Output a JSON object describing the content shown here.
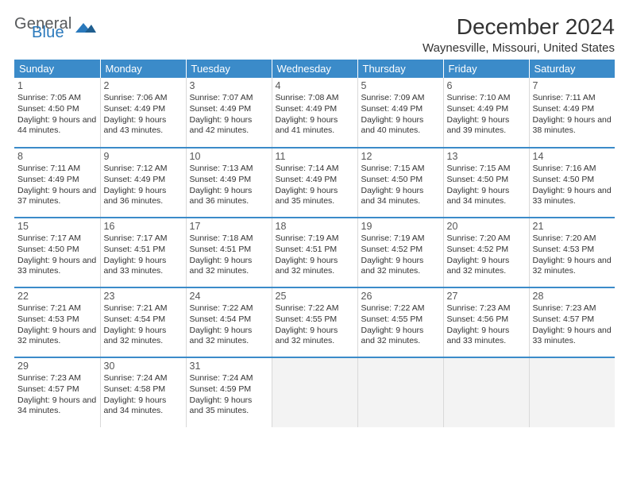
{
  "brand": {
    "part1": "General",
    "part2": "Blue"
  },
  "title": "December 2024",
  "location": "Waynesville, Missouri, United States",
  "colors": {
    "header_bg": "#3b8bc9",
    "header_fg": "#ffffff",
    "row_divider": "#3b8bc9",
    "cell_border": "#d9d9d9",
    "empty_bg": "#f3f3f3",
    "brand_gray": "#57595b",
    "brand_blue": "#2a79bc"
  },
  "typography": {
    "title_fontsize": 28,
    "location_fontsize": 15,
    "dayheader_fontsize": 13,
    "cell_fontsize": 10.5,
    "daynum_fontsize": 12.5
  },
  "days_of_week": [
    "Sunday",
    "Monday",
    "Tuesday",
    "Wednesday",
    "Thursday",
    "Friday",
    "Saturday"
  ],
  "weeks": [
    [
      {
        "n": "1",
        "sr": "7:05 AM",
        "ss": "4:50 PM",
        "dl": "9 hours and 44 minutes."
      },
      {
        "n": "2",
        "sr": "7:06 AM",
        "ss": "4:49 PM",
        "dl": "9 hours and 43 minutes."
      },
      {
        "n": "3",
        "sr": "7:07 AM",
        "ss": "4:49 PM",
        "dl": "9 hours and 42 minutes."
      },
      {
        "n": "4",
        "sr": "7:08 AM",
        "ss": "4:49 PM",
        "dl": "9 hours and 41 minutes."
      },
      {
        "n": "5",
        "sr": "7:09 AM",
        "ss": "4:49 PM",
        "dl": "9 hours and 40 minutes."
      },
      {
        "n": "6",
        "sr": "7:10 AM",
        "ss": "4:49 PM",
        "dl": "9 hours and 39 minutes."
      },
      {
        "n": "7",
        "sr": "7:11 AM",
        "ss": "4:49 PM",
        "dl": "9 hours and 38 minutes."
      }
    ],
    [
      {
        "n": "8",
        "sr": "7:11 AM",
        "ss": "4:49 PM",
        "dl": "9 hours and 37 minutes."
      },
      {
        "n": "9",
        "sr": "7:12 AM",
        "ss": "4:49 PM",
        "dl": "9 hours and 36 minutes."
      },
      {
        "n": "10",
        "sr": "7:13 AM",
        "ss": "4:49 PM",
        "dl": "9 hours and 36 minutes."
      },
      {
        "n": "11",
        "sr": "7:14 AM",
        "ss": "4:49 PM",
        "dl": "9 hours and 35 minutes."
      },
      {
        "n": "12",
        "sr": "7:15 AM",
        "ss": "4:50 PM",
        "dl": "9 hours and 34 minutes."
      },
      {
        "n": "13",
        "sr": "7:15 AM",
        "ss": "4:50 PM",
        "dl": "9 hours and 34 minutes."
      },
      {
        "n": "14",
        "sr": "7:16 AM",
        "ss": "4:50 PM",
        "dl": "9 hours and 33 minutes."
      }
    ],
    [
      {
        "n": "15",
        "sr": "7:17 AM",
        "ss": "4:50 PM",
        "dl": "9 hours and 33 minutes."
      },
      {
        "n": "16",
        "sr": "7:17 AM",
        "ss": "4:51 PM",
        "dl": "9 hours and 33 minutes."
      },
      {
        "n": "17",
        "sr": "7:18 AM",
        "ss": "4:51 PM",
        "dl": "9 hours and 32 minutes."
      },
      {
        "n": "18",
        "sr": "7:19 AM",
        "ss": "4:51 PM",
        "dl": "9 hours and 32 minutes."
      },
      {
        "n": "19",
        "sr": "7:19 AM",
        "ss": "4:52 PM",
        "dl": "9 hours and 32 minutes."
      },
      {
        "n": "20",
        "sr": "7:20 AM",
        "ss": "4:52 PM",
        "dl": "9 hours and 32 minutes."
      },
      {
        "n": "21",
        "sr": "7:20 AM",
        "ss": "4:53 PM",
        "dl": "9 hours and 32 minutes."
      }
    ],
    [
      {
        "n": "22",
        "sr": "7:21 AM",
        "ss": "4:53 PM",
        "dl": "9 hours and 32 minutes."
      },
      {
        "n": "23",
        "sr": "7:21 AM",
        "ss": "4:54 PM",
        "dl": "9 hours and 32 minutes."
      },
      {
        "n": "24",
        "sr": "7:22 AM",
        "ss": "4:54 PM",
        "dl": "9 hours and 32 minutes."
      },
      {
        "n": "25",
        "sr": "7:22 AM",
        "ss": "4:55 PM",
        "dl": "9 hours and 32 minutes."
      },
      {
        "n": "26",
        "sr": "7:22 AM",
        "ss": "4:55 PM",
        "dl": "9 hours and 32 minutes."
      },
      {
        "n": "27",
        "sr": "7:23 AM",
        "ss": "4:56 PM",
        "dl": "9 hours and 33 minutes."
      },
      {
        "n": "28",
        "sr": "7:23 AM",
        "ss": "4:57 PM",
        "dl": "9 hours and 33 minutes."
      }
    ],
    [
      {
        "n": "29",
        "sr": "7:23 AM",
        "ss": "4:57 PM",
        "dl": "9 hours and 34 minutes."
      },
      {
        "n": "30",
        "sr": "7:24 AM",
        "ss": "4:58 PM",
        "dl": "9 hours and 34 minutes."
      },
      {
        "n": "31",
        "sr": "7:24 AM",
        "ss": "4:59 PM",
        "dl": "9 hours and 35 minutes."
      },
      null,
      null,
      null,
      null
    ]
  ],
  "labels": {
    "sunrise": "Sunrise:",
    "sunset": "Sunset:",
    "daylight": "Daylight:"
  }
}
